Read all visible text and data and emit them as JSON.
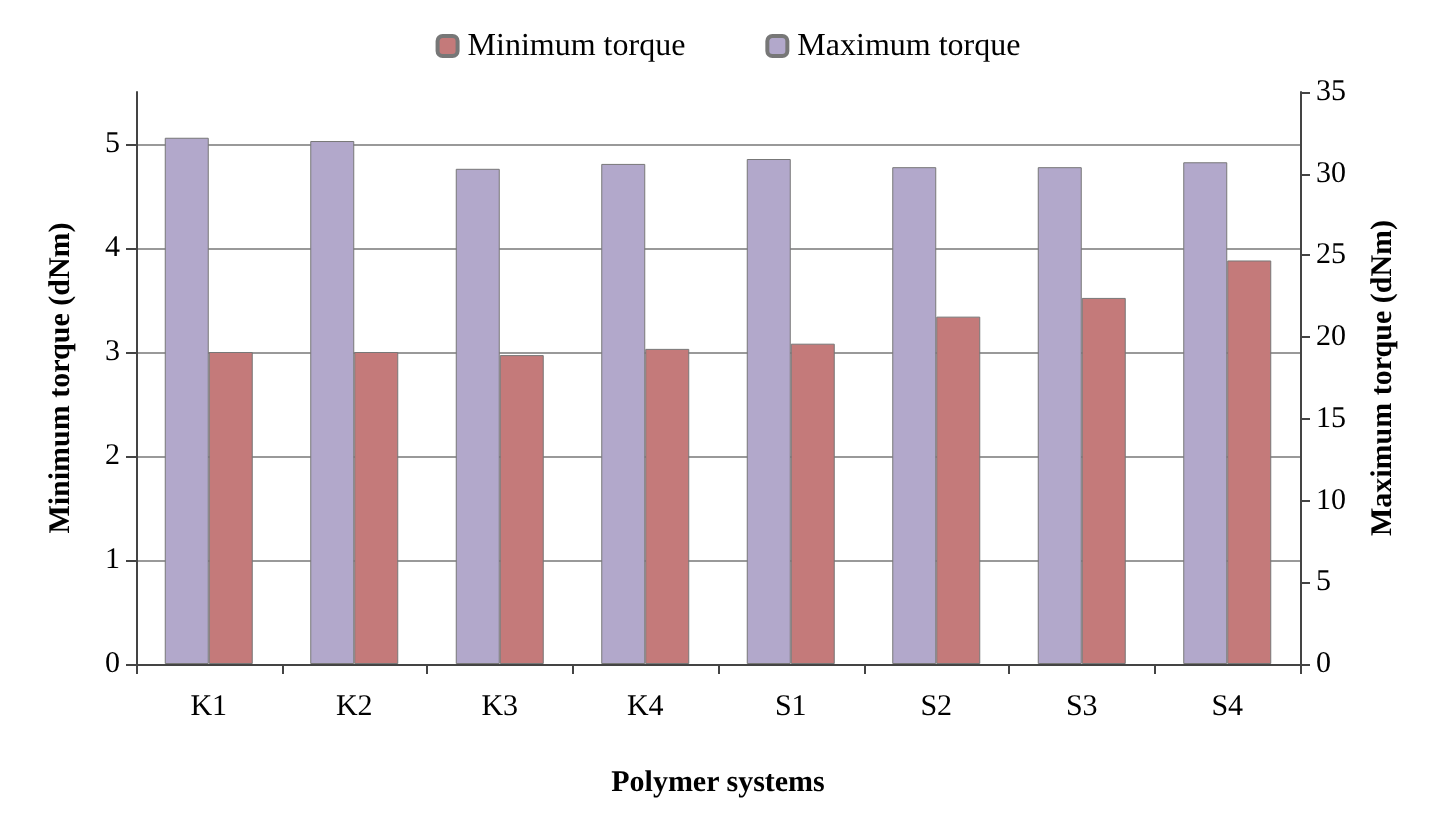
{
  "chart_data": {
    "type": "bar",
    "xlabel": "Polymer systems",
    "ylabel": "Minimum torque (dNm)",
    "y2label": "Maximum torque (dNm)",
    "categories": [
      "K1",
      "K2",
      "K3",
      "K4",
      "S1",
      "S2",
      "S3",
      "S4"
    ],
    "series": [
      {
        "name": "Minimum torque",
        "color": "#c47a7a",
        "values": [
          3.0,
          3.0,
          2.97,
          3.03,
          3.08,
          3.34,
          3.52,
          3.88
        ]
      },
      {
        "name": "Maximum torque",
        "color": "#b2a8cb",
        "axis": "y2",
        "values": [
          32.2,
          32.0,
          30.3,
          30.6,
          30.9,
          30.4,
          30.4,
          30.7
        ]
      }
    ],
    "ylim": [
      0,
      5.5
    ],
    "yticks": [
      0,
      1,
      2,
      3,
      4,
      5
    ],
    "y2lim": [
      0,
      35
    ],
    "y2ticks": [
      0,
      5,
      10,
      15,
      20,
      25,
      30,
      35
    ],
    "grid": "y",
    "legend": "top"
  }
}
